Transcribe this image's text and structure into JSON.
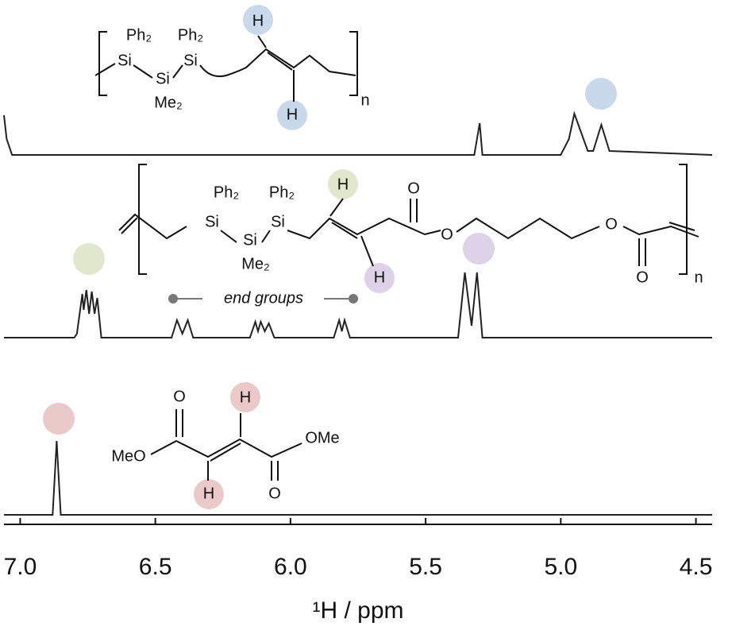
{
  "chart_data": {
    "type": "line",
    "xlabel": "¹H / ppm",
    "xlim": [
      7.06,
      4.44
    ],
    "xticks": [
      {
        "value": 7.0,
        "label": "7.0"
      },
      6.5,
      {
        "value": 6.0,
        "label": "6.0"
      },
      5.5,
      {
        "value": 5.0,
        "label": "5.0"
      },
      4.5
    ],
    "series": [
      {
        "color": "#222222",
        "x": [
          7.06,
          7.05,
          7.03,
          5.32,
          5.3,
          5.29,
          5.0,
          4.97,
          4.95,
          4.9,
          4.88,
          4.85,
          4.82,
          4.44
        ],
        "values": [
          50,
          20,
          0,
          0,
          40,
          0,
          0,
          20,
          52,
          5,
          5,
          38,
          5,
          0
        ]
      },
      {
        "color": "#222222",
        "x": [
          7.06,
          6.8,
          6.79,
          6.77,
          6.765,
          6.755,
          6.745,
          6.735,
          6.725,
          6.715,
          6.7,
          6.44,
          6.42,
          6.4,
          6.38,
          6.36,
          6.15,
          6.13,
          6.12,
          6.11,
          6.095,
          6.08,
          6.06,
          5.84,
          5.82,
          5.81,
          5.8,
          5.78,
          5.38,
          5.355,
          5.33,
          5.31,
          5.29,
          4.44
        ],
        "values": [
          0,
          0,
          5,
          55,
          35,
          60,
          30,
          58,
          30,
          50,
          0,
          0,
          22,
          5,
          22,
          0,
          0,
          20,
          8,
          20,
          8,
          18,
          0,
          0,
          22,
          8,
          22,
          0,
          0,
          82,
          15,
          82,
          0,
          0
        ]
      },
      {
        "color": "#222222",
        "x": [
          7.06,
          6.88,
          6.865,
          6.85,
          4.44
        ],
        "values": [
          0,
          0,
          93,
          0,
          0
        ]
      }
    ],
    "annotation": "end groups",
    "structures": [
      {
        "labels": [
          "Ph₂",
          "Si",
          "Si",
          "Me₂",
          "Ph₂",
          "Si",
          "H",
          "H",
          "n"
        ]
      },
      {
        "labels": [
          "Ph₂",
          "Si",
          "Si",
          "Me₂",
          "Ph₂",
          "Si",
          "H",
          "H",
          "O",
          "O",
          "O",
          "O",
          "n"
        ]
      },
      {
        "labels": [
          "MeO",
          "O",
          "H",
          "OMe",
          "H",
          "O"
        ]
      }
    ]
  }
}
